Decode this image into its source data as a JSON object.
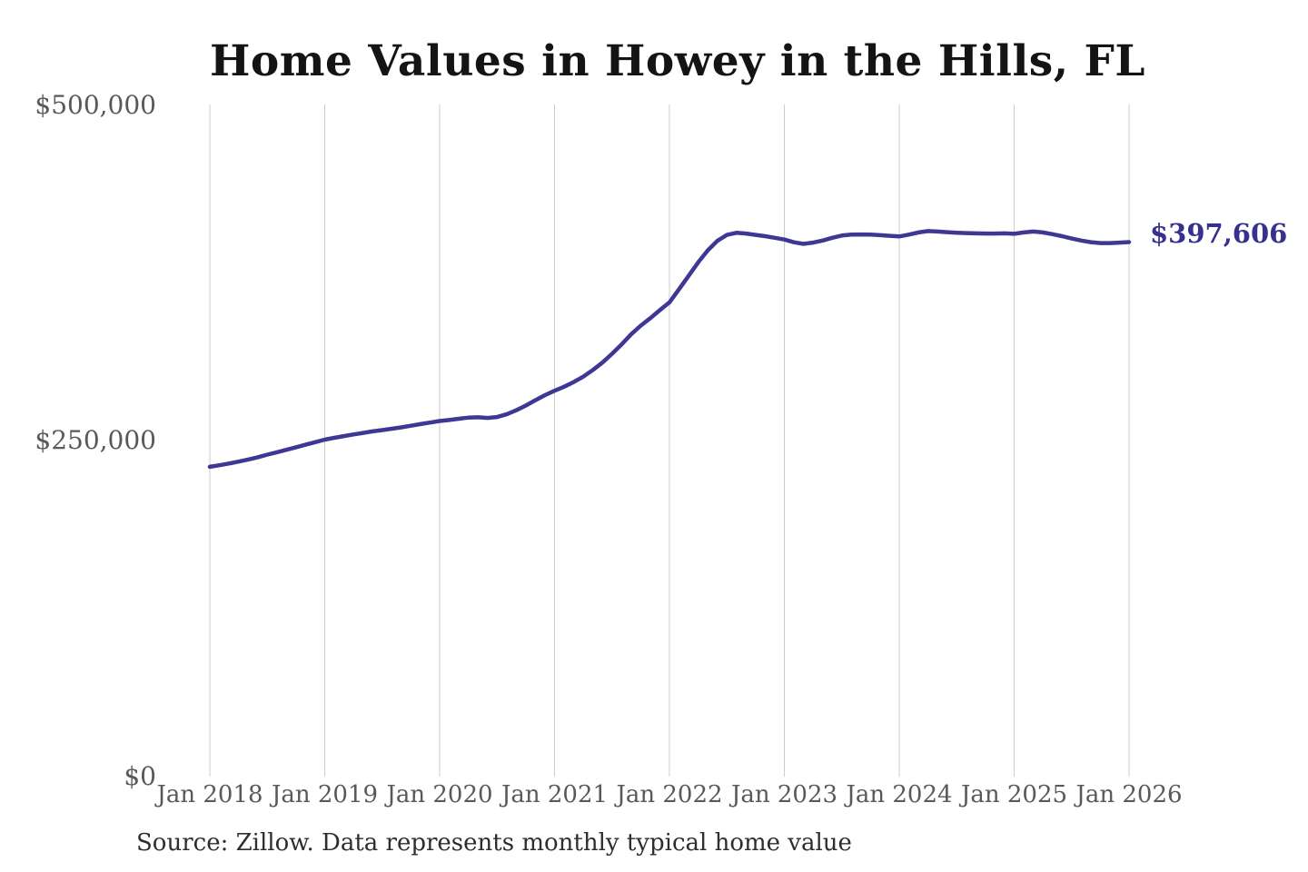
{
  "title": "Home Values in Howey in the Hills, FL",
  "source": "Source: Zillow. Data represents monthly typical home value",
  "colors": {
    "line": "#3e3794",
    "annotation": "#37308f",
    "gridline": "#cdcdcd",
    "axis_label": "#595959",
    "title": "#141414",
    "source": "#2e2e2e"
  },
  "chart_data": {
    "type": "line",
    "title": "Home Values in Howey in the Hills, FL",
    "xlabel": "",
    "ylabel": "",
    "frequency": "monthly",
    "x_start": "Jan 2018",
    "x_end": "Jan 2026",
    "x_ticks": [
      "Jan 2018",
      "Jan 2019",
      "Jan 2020",
      "Jan 2021",
      "Jan 2022",
      "Jan 2023",
      "Jan 2024",
      "Jan 2025",
      "Jan 2026"
    ],
    "y_ticks": [
      {
        "label": "$500,000",
        "value": 500000
      },
      {
        "label": "$250,000",
        "value": 250000
      },
      {
        "label": "$0",
        "value": 0
      }
    ],
    "ylim": [
      0,
      500000
    ],
    "grid": "vertical-only",
    "legend": "none",
    "end_label": "$397,606",
    "end_value": 397606,
    "values": [
      230500,
      231600,
      232900,
      234300,
      235900,
      237600,
      239500,
      241300,
      243100,
      245000,
      246900,
      248800,
      250700,
      252000,
      253300,
      254500,
      255700,
      256800,
      257800,
      258800,
      259800,
      261000,
      262200,
      263400,
      264500,
      265300,
      266200,
      267000,
      267300,
      266800,
      267500,
      269500,
      272500,
      276000,
      280000,
      283800,
      287000,
      290000,
      293500,
      297500,
      302500,
      308000,
      314500,
      321500,
      329000,
      335500,
      341000,
      347000,
      352800,
      362500,
      372500,
      382500,
      391500,
      398500,
      403000,
      404500,
      404000,
      403000,
      402000,
      400800,
      399500,
      397500,
      396300,
      397200,
      398800,
      400800,
      402500,
      403200,
      403300,
      403200,
      402800,
      402300,
      401800,
      403200,
      404800,
      405800,
      405500,
      405000,
      404600,
      404300,
      404100,
      404000,
      404000,
      404100,
      403800,
      404800,
      405500,
      404800,
      403500,
      402000,
      400300,
      398800,
      397600,
      396900,
      396900,
      397200,
      397606
    ]
  }
}
